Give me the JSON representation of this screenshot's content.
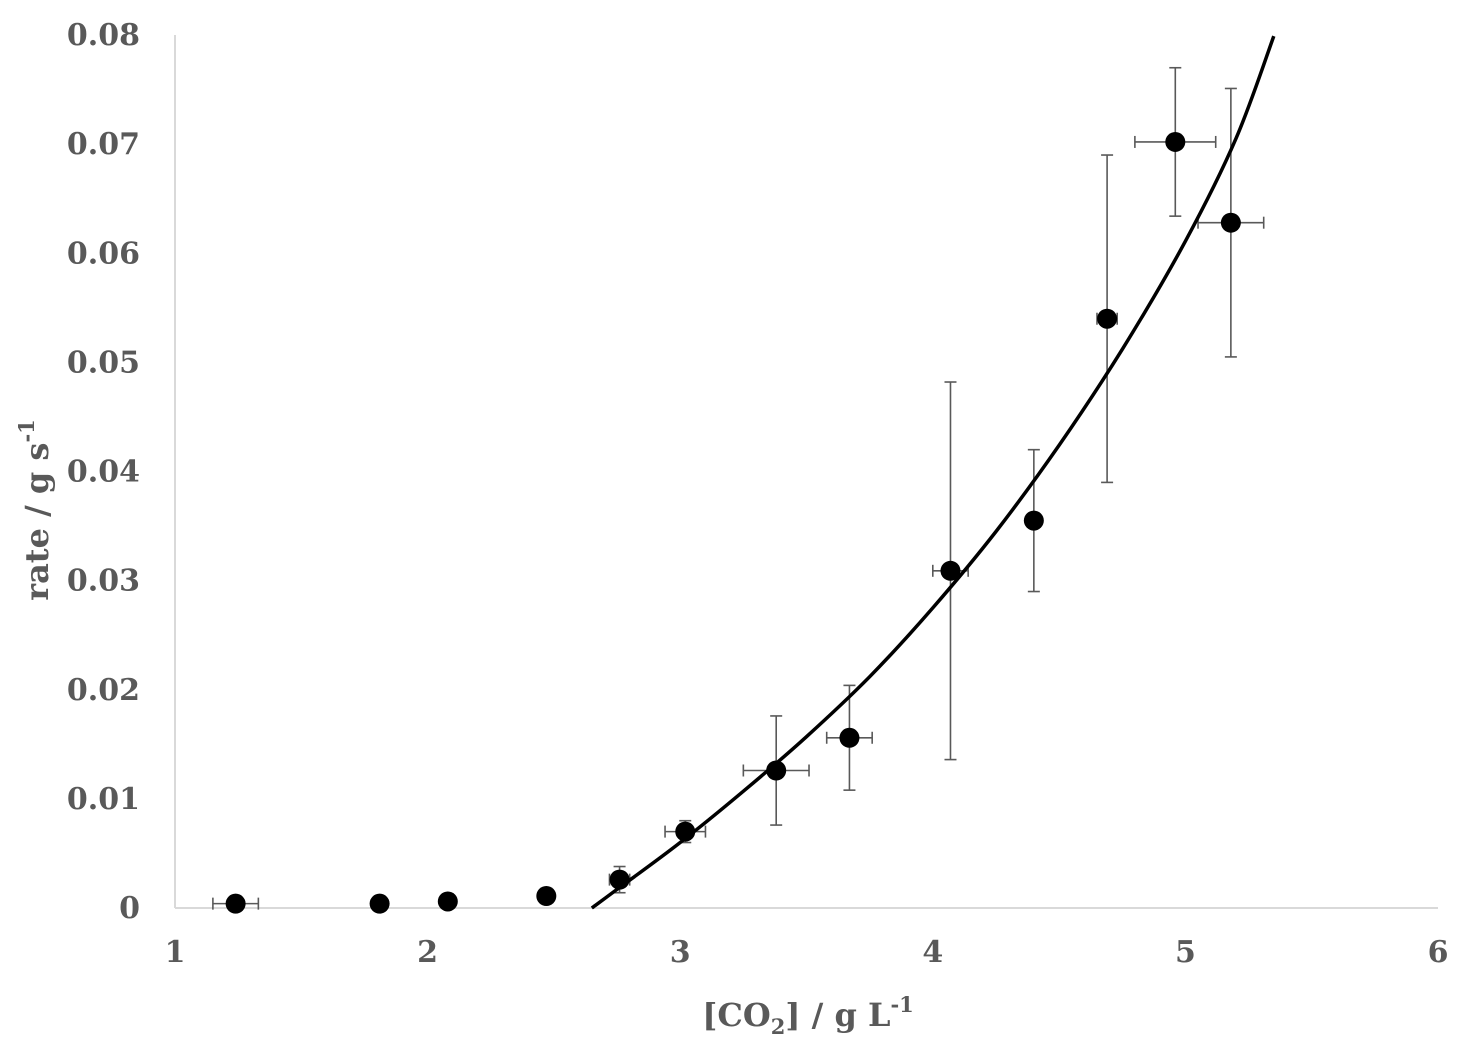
{
  "chart_data": {
    "type": "scatter",
    "xlabel": {
      "main": "[CO",
      "sub": "2",
      "after": "] / g L",
      "sup": "-1"
    },
    "ylabel": {
      "main": "rate / g s",
      "sup": "-1"
    },
    "xlim": [
      1,
      6
    ],
    "ylim": [
      0,
      0.08
    ],
    "x_ticks": [
      1,
      2,
      3,
      4,
      5,
      6
    ],
    "y_ticks": [
      0,
      0.01,
      0.02,
      0.03,
      0.04,
      0.05,
      0.06,
      0.07,
      0.08
    ],
    "x_tick_labels": [
      "1",
      "2",
      "3",
      "4",
      "5",
      "6"
    ],
    "y_tick_labels": [
      "0",
      "0.01",
      "0.02",
      "0.03",
      "0.04",
      "0.05",
      "0.06",
      "0.07",
      "0.08"
    ],
    "grid": false,
    "points": [
      {
        "x": 1.24,
        "y": 0.0004,
        "xerr": 0.09,
        "yerr": 0
      },
      {
        "x": 1.81,
        "y": 0.0004,
        "xerr": 0,
        "yerr": 0
      },
      {
        "x": 2.08,
        "y": 0.0006,
        "xerr": 0,
        "yerr": 0
      },
      {
        "x": 2.47,
        "y": 0.0011,
        "xerr": 0,
        "yerr": 0
      },
      {
        "x": 2.76,
        "y": 0.0026,
        "xerr": 0.04,
        "yerr": 0.0012
      },
      {
        "x": 3.02,
        "y": 0.007,
        "xerr": 0.08,
        "yerr": 0.001
      },
      {
        "x": 3.38,
        "y": 0.0126,
        "xerr": 0.13,
        "yerr": 0.005
      },
      {
        "x": 3.67,
        "y": 0.0156,
        "xerr": 0.09,
        "yerr": 0.0048
      },
      {
        "x": 4.07,
        "y": 0.0309,
        "xerr": 0.07,
        "yerr": 0.0173
      },
      {
        "x": 4.4,
        "y": 0.0355,
        "xerr": 0,
        "yerr": 0.0065
      },
      {
        "x": 4.69,
        "y": 0.054,
        "xerr": 0.04,
        "yerr": 0.015
      },
      {
        "x": 4.96,
        "y": 0.0702,
        "xerr": 0.16,
        "yerr": 0.0068
      },
      {
        "x": 5.18,
        "y": 0.0628,
        "xerr": 0.13,
        "yerr": 0.0123
      }
    ],
    "fit": [
      {
        "x": 2.65,
        "y": 0.0
      },
      {
        "x": 2.75,
        "y": 0.0017
      },
      {
        "x": 3.0,
        "y": 0.006
      },
      {
        "x": 3.25,
        "y": 0.0107
      },
      {
        "x": 3.5,
        "y": 0.0157
      },
      {
        "x": 3.75,
        "y": 0.0212
      },
      {
        "x": 4.0,
        "y": 0.0275
      },
      {
        "x": 4.25,
        "y": 0.0345
      },
      {
        "x": 4.5,
        "y": 0.0424
      },
      {
        "x": 4.75,
        "y": 0.0512
      },
      {
        "x": 5.0,
        "y": 0.0611
      },
      {
        "x": 5.2,
        "y": 0.0705
      },
      {
        "x": 5.35,
        "y": 0.0799
      }
    ]
  }
}
